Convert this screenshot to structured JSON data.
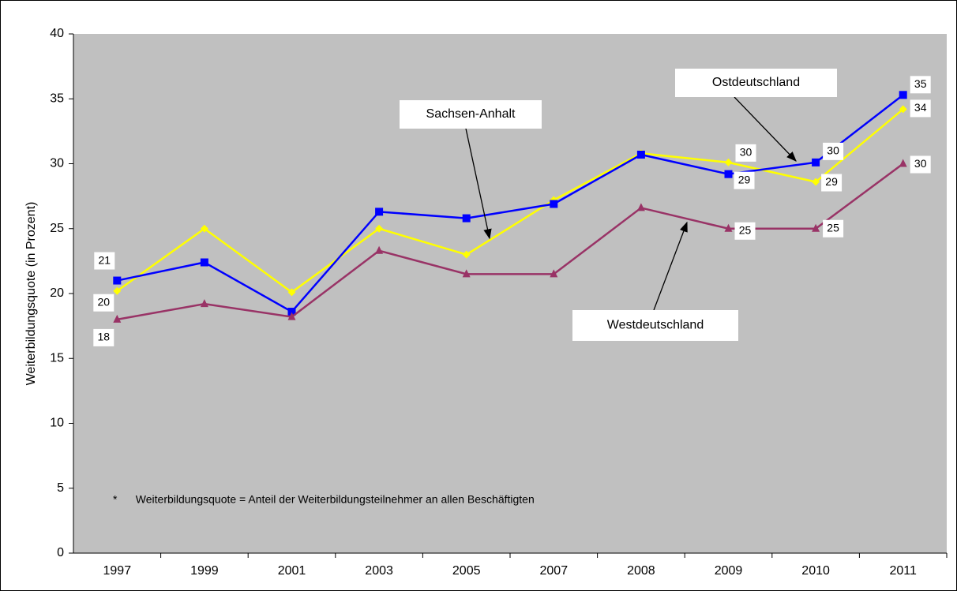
{
  "chart_data": {
    "type": "line",
    "y_label": "Weiterbildungsquote (in Prozent)",
    "footnote": "*      Weiterbildungsquote = Anteil der Weiterbildungsteilnehmer an allen Beschäftigten",
    "categories": [
      "1997",
      "1999",
      "2001",
      "2003",
      "2005",
      "2007",
      "2008",
      "2009",
      "2010",
      "2011"
    ],
    "series": [
      {
        "name": "Sachsen-Anhalt",
        "color": "#ffff00",
        "marker": "diamond",
        "values": [
          20.2,
          25.0,
          20.1,
          25.0,
          23.0,
          27.2,
          30.8,
          30.1,
          28.6,
          34.2
        ],
        "value_labels": [
          "20",
          null,
          null,
          null,
          null,
          null,
          null,
          "30",
          "29",
          "34"
        ]
      },
      {
        "name": "Ostdeutschland",
        "color": "#0000ff",
        "marker": "square",
        "values": [
          21.0,
          22.4,
          18.6,
          26.3,
          25.8,
          26.9,
          30.7,
          29.2,
          30.1,
          35.3
        ],
        "value_labels": [
          "21",
          null,
          null,
          null,
          null,
          null,
          null,
          "29",
          "30",
          "35"
        ]
      },
      {
        "name": "Westdeutschland",
        "color": "#993366",
        "marker": "triangle",
        "values": [
          18.0,
          19.2,
          18.2,
          23.3,
          21.5,
          21.5,
          26.6,
          25.0,
          25.0,
          30.0
        ],
        "value_labels": [
          "18",
          null,
          null,
          null,
          null,
          null,
          null,
          "25",
          "25",
          "30"
        ]
      }
    ],
    "ylim": [
      0,
      40
    ],
    "yticks": [
      0,
      5,
      10,
      15,
      20,
      25,
      30,
      35,
      40
    ],
    "grid": false,
    "plot_background": "#c0c0c0"
  }
}
